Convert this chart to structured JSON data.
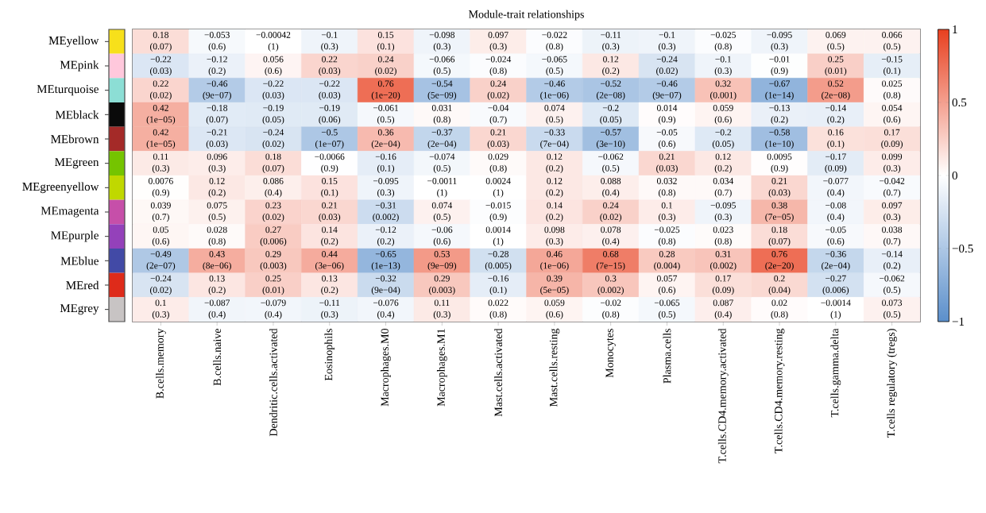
{
  "chart_data": {
    "type": "heatmap",
    "title": "Module-trait relationships",
    "categories": [
      "B.cells.memory",
      "B.cells.naive",
      "Dendritic.cells.activated",
      "Eosinophils",
      "Macrophages.M0",
      "Macrophages.M1",
      "Mast.cells.activated",
      "Mast.cells.resting",
      "Monocytes",
      "Plasma.cells",
      "T.cells.CD4.memory.activated",
      "T.cells.CD4.memory.resting",
      "T.cells.gamma.delta",
      "T.cells regulatory (tregs)"
    ],
    "y_categories": [
      "MEyellow",
      "MEpink",
      "MEturquoise",
      "MEblack",
      "MEbrown",
      "MEgreen",
      "MEgreenyellow",
      "MEmagenta",
      "MEpurple",
      "MEblue",
      "MEred",
      "MEgrey"
    ],
    "cells": [
      [
        0.18,
        -0.053,
        -0.00042,
        -0.1,
        0.15,
        -0.098,
        0.097,
        -0.022,
        -0.11,
        -0.1,
        -0.025,
        -0.095,
        0.069,
        0.066
      ],
      [
        -0.22,
        -0.12,
        0.056,
        0.22,
        0.24,
        -0.066,
        -0.024,
        -0.065,
        0.12,
        -0.24,
        -0.1,
        -0.01,
        0.25,
        -0.15
      ],
      [
        0.22,
        -0.46,
        -0.22,
        -0.22,
        0.76,
        -0.54,
        0.24,
        -0.46,
        -0.52,
        -0.46,
        0.32,
        -0.67,
        0.52,
        0.025
      ],
      [
        0.42,
        -0.18,
        -0.19,
        -0.19,
        -0.061,
        0.031,
        -0.04,
        0.074,
        -0.2,
        0.014,
        0.059,
        -0.13,
        -0.14,
        0.054
      ],
      [
        0.42,
        -0.21,
        -0.24,
        -0.5,
        0.36,
        -0.37,
        0.21,
        -0.33,
        -0.57,
        -0.05,
        -0.2,
        -0.58,
        0.16,
        0.17
      ],
      [
        0.11,
        0.096,
        0.18,
        -0.0066,
        -0.16,
        -0.074,
        0.029,
        0.12,
        -0.062,
        0.21,
        0.12,
        0.0095,
        -0.17,
        0.099
      ],
      [
        0.0076,
        0.12,
        0.086,
        0.15,
        -0.095,
        -0.0011,
        0.0024,
        0.12,
        0.088,
        0.032,
        0.034,
        0.21,
        -0.077,
        -0.042
      ],
      [
        0.039,
        0.075,
        0.23,
        0.21,
        -0.31,
        0.074,
        -0.015,
        0.14,
        0.24,
        0.1,
        -0.095,
        0.38,
        -0.08,
        0.097
      ],
      [
        0.05,
        0.028,
        0.27,
        0.14,
        -0.12,
        -0.06,
        0.0014,
        0.098,
        0.078,
        -0.025,
        0.023,
        0.18,
        -0.05,
        0.038
      ],
      [
        -0.49,
        0.43,
        0.29,
        0.44,
        -0.65,
        0.53,
        -0.28,
        0.46,
        0.68,
        0.28,
        0.31,
        0.76,
        -0.36,
        -0.14
      ],
      [
        -0.24,
        0.13,
        0.25,
        0.13,
        -0.32,
        0.29,
        -0.16,
        0.39,
        0.3,
        0.057,
        0.17,
        0.2,
        -0.27,
        -0.062
      ],
      [
        0.1,
        -0.087,
        -0.079,
        -0.11,
        -0.076,
        0.11,
        0.022,
        0.059,
        -0.02,
        -0.065,
        0.087,
        0.02,
        -0.0014,
        0.073
      ]
    ],
    "cell_labels": [
      [
        [
          "0.18",
          "(0.07)"
        ],
        [
          "−0.053",
          "(0.6)"
        ],
        [
          "−0.00042",
          "(1)"
        ],
        [
          "−0.1",
          "(0.3)"
        ],
        [
          "0.15",
          "(0.1)"
        ],
        [
          "−0.098",
          "(0.3)"
        ],
        [
          "0.097",
          "(0.3)"
        ],
        [
          "−0.022",
          "(0.8)"
        ],
        [
          "−0.11",
          "(0.3)"
        ],
        [
          "−0.1",
          "(0.3)"
        ],
        [
          "−0.025",
          "(0.8)"
        ],
        [
          "−0.095",
          "(0.3)"
        ],
        [
          "0.069",
          "(0.5)"
        ],
        [
          "0.066",
          "(0.5)"
        ]
      ],
      [
        [
          "−0.22",
          "(0.03)"
        ],
        [
          "−0.12",
          "(0.2)"
        ],
        [
          "0.056",
          "(0.6)"
        ],
        [
          "0.22",
          "(0.03)"
        ],
        [
          "0.24",
          "(0.02)"
        ],
        [
          "−0.066",
          "(0.5)"
        ],
        [
          "−0.024",
          "(0.8)"
        ],
        [
          "−0.065",
          "(0.5)"
        ],
        [
          "0.12",
          "(0.2)"
        ],
        [
          "−0.24",
          "(0.02)"
        ],
        [
          "−0.1",
          "(0.3)"
        ],
        [
          "−0.01",
          "(0.9)"
        ],
        [
          "0.25",
          "(0.01)"
        ],
        [
          "−0.15",
          "(0.1)"
        ]
      ],
      [
        [
          "0.22",
          "(0.02)"
        ],
        [
          "−0.46",
          "(9e−07)"
        ],
        [
          "−0.22",
          "(0.03)"
        ],
        [
          "−0.22",
          "(0.03)"
        ],
        [
          "0.76",
          "(1e−20)"
        ],
        [
          "−0.54",
          "(5e−09)"
        ],
        [
          "0.24",
          "(0.02)"
        ],
        [
          "−0.46",
          "(1e−06)"
        ],
        [
          "−0.52",
          "(2e−08)"
        ],
        [
          "−0.46",
          "(9e−07)"
        ],
        [
          "0.32",
          "(0.001)"
        ],
        [
          "−0.67",
          "(1e−14)"
        ],
        [
          "0.52",
          "(2e−08)"
        ],
        [
          "0.025",
          "(0.8)"
        ]
      ],
      [
        [
          "0.42",
          "(1e−05)"
        ],
        [
          "−0.18",
          "(0.07)"
        ],
        [
          "−0.19",
          "(0.05)"
        ],
        [
          "−0.19",
          "(0.06)"
        ],
        [
          "−0.061",
          "(0.5)"
        ],
        [
          "0.031",
          "(0.8)"
        ],
        [
          "−0.04",
          "(0.7)"
        ],
        [
          "0.074",
          "(0.5)"
        ],
        [
          "−0.2",
          "(0.05)"
        ],
        [
          "0.014",
          "(0.9)"
        ],
        [
          "0.059",
          "(0.6)"
        ],
        [
          "−0.13",
          "(0.2)"
        ],
        [
          "−0.14",
          "(0.2)"
        ],
        [
          "0.054",
          "(0.6)"
        ]
      ],
      [
        [
          "0.42",
          "(1e−05)"
        ],
        [
          "−0.21",
          "(0.03)"
        ],
        [
          "−0.24",
          "(0.02)"
        ],
        [
          "−0.5",
          "(1e−07)"
        ],
        [
          "0.36",
          "(2e−04)"
        ],
        [
          "−0.37",
          "(2e−04)"
        ],
        [
          "0.21",
          "(0.03)"
        ],
        [
          "−0.33",
          "(7e−04)"
        ],
        [
          "−0.57",
          "(3e−10)"
        ],
        [
          "−0.05",
          "(0.6)"
        ],
        [
          "−0.2",
          "(0.05)"
        ],
        [
          "−0.58",
          "(1e−10)"
        ],
        [
          "0.16",
          "(0.1)"
        ],
        [
          "0.17",
          "(0.09)"
        ]
      ],
      [
        [
          "0.11",
          "(0.3)"
        ],
        [
          "0.096",
          "(0.3)"
        ],
        [
          "0.18",
          "(0.07)"
        ],
        [
          "−0.0066",
          "(0.9)"
        ],
        [
          "−0.16",
          "(0.1)"
        ],
        [
          "−0.074",
          "(0.5)"
        ],
        [
          "0.029",
          "(0.8)"
        ],
        [
          "0.12",
          "(0.2)"
        ],
        [
          "−0.062",
          "(0.5)"
        ],
        [
          "0.21",
          "(0.03)"
        ],
        [
          "0.12",
          "(0.2)"
        ],
        [
          "0.0095",
          "(0.9)"
        ],
        [
          "−0.17",
          "(0.09)"
        ],
        [
          "0.099",
          "(0.3)"
        ]
      ],
      [
        [
          "0.0076",
          "(0.9)"
        ],
        [
          "0.12",
          "(0.2)"
        ],
        [
          "0.086",
          "(0.4)"
        ],
        [
          "0.15",
          "(0.1)"
        ],
        [
          "−0.095",
          "(0.3)"
        ],
        [
          "−0.0011",
          "(1)"
        ],
        [
          "0.0024",
          "(1)"
        ],
        [
          "0.12",
          "(0.2)"
        ],
        [
          "0.088",
          "(0.4)"
        ],
        [
          "0.032",
          "(0.8)"
        ],
        [
          "0.034",
          "(0.7)"
        ],
        [
          "0.21",
          "(0.03)"
        ],
        [
          "−0.077",
          "(0.4)"
        ],
        [
          "−0.042",
          "(0.7)"
        ]
      ],
      [
        [
          "0.039",
          "(0.7)"
        ],
        [
          "0.075",
          "(0.5)"
        ],
        [
          "0.23",
          "(0.02)"
        ],
        [
          "0.21",
          "(0.03)"
        ],
        [
          "−0.31",
          "(0.002)"
        ],
        [
          "0.074",
          "(0.5)"
        ],
        [
          "−0.015",
          "(0.9)"
        ],
        [
          "0.14",
          "(0.2)"
        ],
        [
          "0.24",
          "(0.02)"
        ],
        [
          "0.1",
          "(0.3)"
        ],
        [
          "−0.095",
          "(0.3)"
        ],
        [
          "0.38",
          "(7e−05)"
        ],
        [
          "−0.08",
          "(0.4)"
        ],
        [
          "0.097",
          "(0.3)"
        ]
      ],
      [
        [
          "0.05",
          "(0.6)"
        ],
        [
          "0.028",
          "(0.8)"
        ],
        [
          "0.27",
          "(0.006)"
        ],
        [
          "0.14",
          "(0.2)"
        ],
        [
          "−0.12",
          "(0.2)"
        ],
        [
          "−0.06",
          "(0.6)"
        ],
        [
          "0.0014",
          "(1)"
        ],
        [
          "0.098",
          "(0.3)"
        ],
        [
          "0.078",
          "(0.4)"
        ],
        [
          "−0.025",
          "(0.8)"
        ],
        [
          "0.023",
          "(0.8)"
        ],
        [
          "0.18",
          "(0.07)"
        ],
        [
          "−0.05",
          "(0.6)"
        ],
        [
          "0.038",
          "(0.7)"
        ]
      ],
      [
        [
          "−0.49",
          "(2e−07)"
        ],
        [
          "0.43",
          "(8e−06)"
        ],
        [
          "0.29",
          "(0.003)"
        ],
        [
          "0.44",
          "(3e−06)"
        ],
        [
          "−0.65",
          "(1e−13)"
        ],
        [
          "0.53",
          "(9e−09)"
        ],
        [
          "−0.28",
          "(0.005)"
        ],
        [
          "0.46",
          "(1e−06)"
        ],
        [
          "0.68",
          "(7e−15)"
        ],
        [
          "0.28",
          "(0.004)"
        ],
        [
          "0.31",
          "(0.002)"
        ],
        [
          "0.76",
          "(2e−20)"
        ],
        [
          "−0.36",
          "(2e−04)"
        ],
        [
          "−0.14",
          "(0.2)"
        ]
      ],
      [
        [
          "−0.24",
          "(0.02)"
        ],
        [
          "0.13",
          "(0.2)"
        ],
        [
          "0.25",
          "(0.01)"
        ],
        [
          "0.13",
          "(0.2)"
        ],
        [
          "−0.32",
          "(9e−04)"
        ],
        [
          "0.29",
          "(0.003)"
        ],
        [
          "−0.16",
          "(0.1)"
        ],
        [
          "0.39",
          "(5e−05)"
        ],
        [
          "0.3",
          "(0.002)"
        ],
        [
          "0.057",
          "(0.6)"
        ],
        [
          "0.17",
          "(0.09)"
        ],
        [
          "0.2",
          "(0.04)"
        ],
        [
          "−0.27",
          "(0.006)"
        ],
        [
          "−0.062",
          "(0.5)"
        ]
      ],
      [
        [
          "0.1",
          "(0.3)"
        ],
        [
          "−0.087",
          "(0.4)"
        ],
        [
          "−0.079",
          "(0.4)"
        ],
        [
          "−0.11",
          "(0.3)"
        ],
        [
          "−0.076",
          "(0.4)"
        ],
        [
          "0.11",
          "(0.3)"
        ],
        [
          "0.022",
          "(0.8)"
        ],
        [
          "0.059",
          "(0.6)"
        ],
        [
          "−0.02",
          "(0.8)"
        ],
        [
          "−0.065",
          "(0.5)"
        ],
        [
          "0.087",
          "(0.4)"
        ],
        [
          "0.02",
          "(0.8)"
        ],
        [
          "−0.0014",
          "(1)"
        ],
        [
          "0.073",
          "(0.5)"
        ]
      ]
    ],
    "clim": [
      -1,
      1
    ],
    "cticks": [
      {
        "value": -1,
        "label": "−1"
      },
      {
        "value": -0.5,
        "label": "−0.5"
      },
      0,
      0.5,
      1
    ]
  }
}
